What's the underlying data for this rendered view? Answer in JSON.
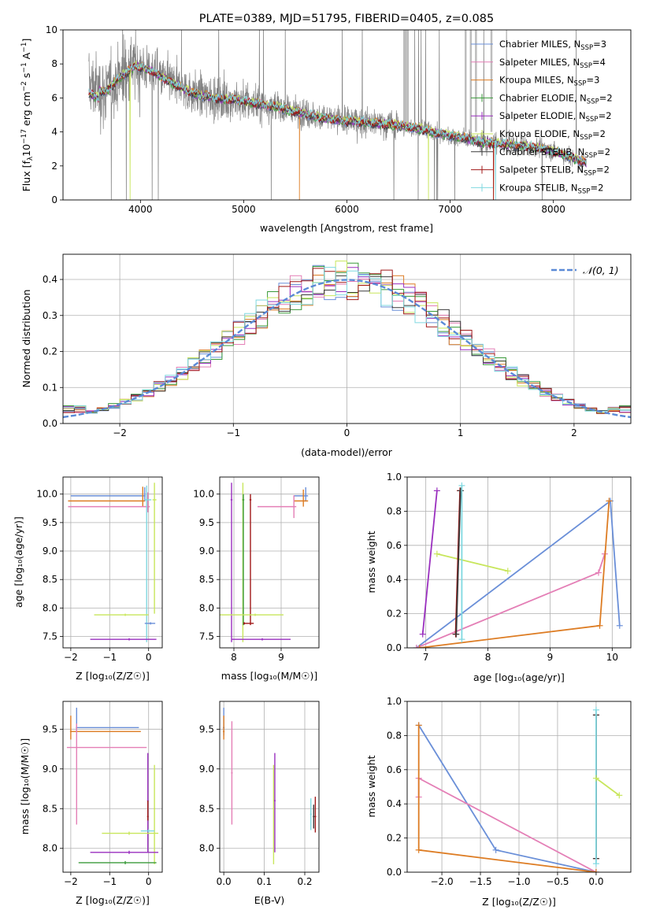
{
  "colors": {
    "Chabrier MILES": "#6a8fd8",
    "Salpeter MILES": "#e47fb6",
    "Kroupa MILES": "#dd7c23",
    "Chabrier ELODIE": "#3a9a3a",
    "Salpeter ELODIE": "#9a2fbf",
    "Kroupa ELODIE": "#c8e65c",
    "Chabrier STELIB": "#3a3a3a",
    "Salpeter STELIB": "#a01818",
    "Kroupa STELIB": "#7fd8e0",
    "data": "#808080",
    "normal": "#5b8ad6"
  },
  "chart_data": [
    {
      "id": "spectrum",
      "type": "line",
      "title": "PLATE=0389, MJD=51795, FIBERID=0405, z=0.085",
      "xlabel": "wavelength [Angstrom, rest frame]",
      "ylabel": "Flux [f$_\\lambda$10$^{-17}$ erg cm$^{-2}$ s$^{-1}$ A$^{-1}$]",
      "ylabel_parts": [
        "Flux [f",
        "λ",
        "10",
        "−17",
        " erg cm",
        "−2",
        " s",
        "−1",
        " A",
        "−1",
        "]"
      ],
      "xlim": [
        3250,
        8750
      ],
      "ylim": [
        0,
        10
      ],
      "xticks": [
        4000,
        5000,
        6000,
        7000,
        8000
      ],
      "yticks": [
        0,
        2,
        4,
        6,
        8,
        10
      ],
      "legend_position": "right",
      "legend": [
        {
          "base": "Chabrier MILES, N",
          "sub": "SSP",
          "tail": "=3"
        },
        {
          "base": "Salpeter MILES, N",
          "sub": "SSP",
          "tail": "=4"
        },
        {
          "base": "Kroupa MILES, N",
          "sub": "SSP",
          "tail": "=3"
        },
        {
          "base": "Chabrier ELODIE, N",
          "sub": "SSP",
          "tail": "=2"
        },
        {
          "base": "Salpeter ELODIE, N",
          "sub": "SSP",
          "tail": "=2"
        },
        {
          "base": "Kroupa ELODIE, N",
          "sub": "SSP",
          "tail": "=2"
        },
        {
          "base": "Chabrier STELIB, N",
          "sub": "SSP",
          "tail": "=2"
        },
        {
          "base": "Salpeter STELIB, N",
          "sub": "SSP",
          "tail": "=2"
        },
        {
          "base": "Kroupa STELIB, N",
          "sub": "SSP",
          "tail": "=2"
        }
      ],
      "continuum": {
        "x": [
          3500,
          3650,
          3800,
          3950,
          4100,
          4300,
          4500,
          4700,
          4900,
          5100,
          5300,
          5500,
          5700,
          5900,
          6100,
          6300,
          6500,
          6700,
          6900,
          7100,
          7300,
          7500,
          7700,
          7900,
          8100,
          8300
        ],
        "y": [
          6.8,
          6.3,
          7.2,
          7.9,
          7.6,
          6.9,
          6.3,
          6.0,
          5.9,
          5.7,
          5.5,
          5.2,
          4.9,
          4.7,
          4.6,
          4.5,
          4.4,
          4.2,
          3.9,
          3.7,
          3.4,
          3.3,
          3.2,
          3.0,
          2.7,
          2.2
        ]
      }
    },
    {
      "id": "residuals",
      "type": "step",
      "xlabel": "(data-model)/error",
      "ylabel": "Normed distribution",
      "xlim": [
        -2.5,
        2.5
      ],
      "ylim": [
        0,
        0.47
      ],
      "xticks": [
        -2,
        -1,
        0,
        1,
        2
      ],
      "yticks": [
        0.0,
        0.1,
        0.2,
        0.3,
        0.4
      ],
      "grid": true,
      "legend_position": "upper right",
      "legend_label": "𝒩(0, 1)",
      "bin_width": 0.1
    },
    {
      "id": "age-vs-Z",
      "type": "errorbar",
      "xlabel": "Z [log₁₀(Z/Z☉)]",
      "ylabel": "age  [log₁₀(age/yr)]",
      "xlim": [
        -2.2,
        0.35
      ],
      "ylim": [
        7.3,
        10.3
      ],
      "xticks": [
        -2,
        -1,
        0
      ],
      "yticks": [
        7.5,
        8.0,
        8.5,
        9.0,
        9.5,
        10.0
      ],
      "grid": true,
      "points": [
        {
          "series": "Chabrier MILES",
          "x": -0.1,
          "xerr": [
            1.9,
            0.02
          ],
          "y": 9.97,
          "yerr": [
            0.1,
            0.15
          ]
        },
        {
          "series": "Kroupa MILES",
          "x": -0.15,
          "xerr": [
            1.92,
            0.05
          ],
          "y": 9.88,
          "yerr": [
            0.1,
            0.25
          ]
        },
        {
          "series": "Salpeter MILES",
          "x": -0.02,
          "xerr": [
            2.05,
            0.05
          ],
          "y": 9.78,
          "yerr": [
            0.1,
            0.25
          ]
        },
        {
          "series": "Kroupa STELIB",
          "x": -0.05,
          "xerr": [
            0.05,
            0.12
          ],
          "y": 9.9,
          "yerr": [
            2.5,
            0.25
          ]
        },
        {
          "series": "Kroupa ELODIE",
          "x": 0.15,
          "xerr": [
            0.05,
            0.05
          ],
          "y": 9.9,
          "yerr": [
            2.0,
            0.3
          ]
        },
        {
          "series": "Kroupa ELODIE",
          "x": -0.6,
          "xerr": [
            0.8,
            0.6
          ],
          "y": 7.88,
          "yerr": [
            0.02,
            0.02
          ]
        },
        {
          "series": "Chabrier MILES",
          "x": 0.05,
          "xerr": [
            0.15,
            0.12
          ],
          "y": 7.73,
          "yerr": [
            0.02,
            0.02
          ]
        },
        {
          "series": "Salpeter ELODIE",
          "x": -0.5,
          "xerr": [
            1.0,
            0.7
          ],
          "y": 7.45,
          "yerr": [
            0.02,
            0.02
          ]
        }
      ]
    },
    {
      "id": "age-vs-mass",
      "type": "errorbar",
      "xlabel": "mass [log₁₀(M/M☉)]",
      "xlim": [
        7.7,
        9.8
      ],
      "ylim": [
        7.3,
        10.3
      ],
      "xticks": [
        8,
        9
      ],
      "yticks": [
        7.5,
        8.0,
        8.5,
        9.0,
        9.5,
        10.0
      ],
      "grid": true,
      "points": [
        {
          "series": "Chabrier MILES",
          "x": 9.52,
          "xerr": [
            0.25,
            0.05
          ],
          "y": 9.97,
          "yerr": [
            0.1,
            0.15
          ]
        },
        {
          "series": "Kroupa MILES",
          "x": 9.47,
          "xerr": [
            0.2,
            0.1
          ],
          "y": 9.88,
          "yerr": [
            0.1,
            0.2
          ]
        },
        {
          "series": "Salpeter MILES",
          "x": 9.27,
          "xerr": [
            0.77,
            0.05
          ],
          "y": 9.78,
          "yerr": [
            0.2,
            0.2
          ]
        },
        {
          "series": "Kroupa ELODIE",
          "x": 8.19,
          "xerr": [
            0.02,
            0.02
          ],
          "y": 9.9,
          "yerr": [
            2.5,
            0.3
          ]
        },
        {
          "series": "Salpeter ELODIE",
          "x": 7.95,
          "xerr": [
            0.02,
            0.02
          ],
          "y": 9.9,
          "yerr": [
            2.5,
            0.3
          ]
        },
        {
          "series": "Salpeter STELIB",
          "x": 8.35,
          "xerr": [
            0.02,
            0.02
          ],
          "y": 9.9,
          "yerr": [
            2.2,
            0.1
          ]
        },
        {
          "series": "Chabrier ELODIE",
          "x": 8.2,
          "xerr": [
            0.02,
            0.02
          ],
          "y": 9.9,
          "yerr": [
            2.2,
            0.1
          ]
        },
        {
          "series": "Kroupa ELODIE",
          "x": 8.45,
          "xerr": [
            0.8,
            0.6
          ],
          "y": 7.88,
          "yerr": [
            0.02,
            0.02
          ]
        },
        {
          "series": "Salpeter ELODIE",
          "x": 8.6,
          "xerr": [
            0.65,
            0.6
          ],
          "y": 7.45,
          "yerr": [
            0.02,
            0.02
          ]
        },
        {
          "series": "Salpeter STELIB",
          "x": 8.22,
          "xerr": [
            0.02,
            0.2
          ],
          "y": 7.73,
          "yerr": [
            0.02,
            0.02
          ]
        }
      ]
    },
    {
      "id": "mass-weight-vs-age",
      "type": "line",
      "xlabel": "age  [log₁₀(age/yr)]",
      "ylabel": "mass weight",
      "xlim": [
        6.7,
        10.3
      ],
      "ylim": [
        0,
        1.0
      ],
      "xticks": [
        7,
        8,
        9,
        10
      ],
      "yticks": [
        0.0,
        0.2,
        0.4,
        0.6,
        0.8,
        1.0
      ],
      "grid": true,
      "series": [
        {
          "name": "Chabrier MILES",
          "x": [
            6.85,
            9.97,
            10.12
          ],
          "y": [
            0.0,
            0.86,
            0.13
          ]
        },
        {
          "name": "Salpeter MILES",
          "x": [
            6.85,
            9.78,
            9.88
          ],
          "y": [
            0.0,
            0.44,
            0.55
          ]
        },
        {
          "name": "Kroupa MILES",
          "x": [
            6.9,
            9.8,
            9.95
          ],
          "y": [
            0.0,
            0.13,
            0.86
          ]
        },
        {
          "name": "Salpeter ELODIE",
          "x": [
            6.95,
            7.18
          ],
          "y": [
            0.08,
            0.92
          ]
        },
        {
          "name": "Kroupa ELODIE",
          "x": [
            7.18,
            8.32
          ],
          "y": [
            0.55,
            0.45
          ]
        },
        {
          "name": "Salpeter STELIB",
          "x": [
            7.48,
            7.55
          ],
          "y": [
            0.08,
            0.92
          ]
        },
        {
          "name": "Chabrier STELIB",
          "x": [
            7.49,
            7.56
          ],
          "y": [
            0.08,
            0.92
          ]
        },
        {
          "name": "Kroupa STELIB",
          "x": [
            7.58,
            7.58
          ],
          "y": [
            0.05,
            0.95
          ]
        }
      ]
    },
    {
      "id": "mass-vs-Z",
      "type": "errorbar",
      "xlabel": "Z [log₁₀(Z/Z☉)]",
      "ylabel": "mass [log₁₀(M/M☉)]",
      "xlim": [
        -2.2,
        0.35
      ],
      "ylim": [
        7.7,
        9.85
      ],
      "xticks": [
        -2,
        -1,
        0
      ],
      "yticks": [
        8.0,
        8.5,
        9.0,
        9.5
      ],
      "grid": true,
      "points": [
        {
          "series": "Chabrier MILES",
          "x": -1.85,
          "xerr": [
            0.02,
            1.6
          ],
          "y": 9.52,
          "yerr": [
            0.05,
            0.25
          ]
        },
        {
          "series": "Kroupa MILES",
          "x": -2.0,
          "xerr": [
            0.02,
            1.8
          ],
          "y": 9.47,
          "yerr": [
            0.1,
            0.2
          ]
        },
        {
          "series": "Salpeter MILES",
          "x": -1.85,
          "xerr": [
            0.25,
            1.8
          ],
          "y": 9.27,
          "yerr": [
            0.97,
            0.3
          ]
        },
        {
          "series": "Salpeter ELODIE",
          "x": -0.02,
          "xerr": [
            0.02,
            0.02
          ],
          "y": 8.6,
          "yerr": [
            0.65,
            0.6
          ]
        },
        {
          "series": "Salpeter STELIB",
          "x": -0.02,
          "xerr": [
            0.02,
            0.02
          ],
          "y": 8.4,
          "yerr": [
            0.05,
            0.2
          ]
        },
        {
          "series": "Kroupa ELODIE",
          "x": 0.15,
          "xerr": [
            0.02,
            0.02
          ],
          "y": 8.5,
          "yerr": [
            0.7,
            0.55
          ]
        },
        {
          "series": "Kroupa STELIB",
          "x": 0.0,
          "xerr": [
            0.2,
            0.15
          ],
          "y": 8.22,
          "yerr": [
            0.02,
            0.02
          ]
        },
        {
          "series": "Kroupa ELODIE",
          "x": -0.5,
          "xerr": [
            0.7,
            0.75
          ],
          "y": 8.19,
          "yerr": [
            0.02,
            0.02
          ]
        },
        {
          "series": "Salpeter ELODIE",
          "x": -0.5,
          "xerr": [
            1.0,
            0.75
          ],
          "y": 7.95,
          "yerr": [
            0.02,
            0.02
          ]
        },
        {
          "series": "Chabrier ELODIE",
          "x": -0.6,
          "xerr": [
            1.2,
            0.8
          ],
          "y": 7.82,
          "yerr": [
            0.02,
            0.02
          ]
        }
      ]
    },
    {
      "id": "mass-vs-EBV",
      "type": "errorbar",
      "xlabel": "E(B-V)",
      "xlim": [
        -0.01,
        0.235
      ],
      "ylim": [
        7.7,
        9.85
      ],
      "xticks": [
        0.0,
        0.1,
        0.2
      ],
      "yticks": [
        8.0,
        8.5,
        9.0,
        9.5
      ],
      "grid": true,
      "points": [
        {
          "series": "Chabrier MILES",
          "x": 0.0,
          "xerr": [
            0.002,
            0.002
          ],
          "y": 9.52,
          "yerr": [
            0.1,
            0.25
          ]
        },
        {
          "series": "Kroupa MILES",
          "x": 0.0,
          "xerr": [
            0.002,
            0.002
          ],
          "y": 9.47,
          "yerr": [
            0.1,
            0.2
          ]
        },
        {
          "series": "Salpeter MILES",
          "x": 0.02,
          "xerr": [
            0.002,
            0.002
          ],
          "y": 8.95,
          "yerr": [
            0.65,
            0.65
          ]
        },
        {
          "series": "Kroupa ELODIE",
          "x": 0.123,
          "xerr": [
            0.002,
            0.002
          ],
          "y": 8.5,
          "yerr": [
            0.7,
            0.55
          ]
        },
        {
          "series": "Salpeter ELODIE",
          "x": 0.126,
          "xerr": [
            0.002,
            0.002
          ],
          "y": 8.6,
          "yerr": [
            0.65,
            0.6
          ]
        },
        {
          "series": "Kroupa STELIB",
          "x": 0.215,
          "xerr": [
            0.002,
            0.002
          ],
          "y": 8.43,
          "yerr": [
            0.2,
            0.2
          ]
        },
        {
          "series": "Chabrier STELIB",
          "x": 0.222,
          "xerr": [
            0.002,
            0.002
          ],
          "y": 8.4,
          "yerr": [
            0.15,
            0.15
          ]
        },
        {
          "series": "Salpeter STELIB",
          "x": 0.226,
          "xerr": [
            0.002,
            0.002
          ],
          "y": 8.4,
          "yerr": [
            0.2,
            0.25
          ]
        }
      ]
    },
    {
      "id": "mass-weight-vs-Z",
      "type": "line",
      "xlabel": "Z [log₁₀(Z/Z☉)]",
      "ylabel": "mass weight",
      "xlim": [
        -2.45,
        0.45
      ],
      "ylim": [
        0,
        1.0
      ],
      "xticks": [
        -2.0,
        -1.5,
        -1.0,
        -0.5,
        0.0
      ],
      "yticks": [
        0.0,
        0.2,
        0.4,
        0.6,
        0.8,
        1.0
      ],
      "grid": true,
      "series": [
        {
          "name": "Chabrier MILES",
          "x": [
            -2.3,
            -1.3,
            0.0
          ],
          "y": [
            0.86,
            0.13,
            0.0
          ]
        },
        {
          "name": "Salpeter MILES",
          "x": [
            -2.3,
            -2.3,
            0.0
          ],
          "y": [
            0.44,
            0.55,
            0.0
          ]
        },
        {
          "name": "Kroupa MILES",
          "x": [
            -2.3,
            -2.3,
            0.0
          ],
          "y": [
            0.86,
            0.13,
            0.0
          ]
        },
        {
          "name": "Salpeter STELIB",
          "x": [
            0.0,
            0.0
          ],
          "y": [
            0.08,
            0.92
          ]
        },
        {
          "name": "Chabrier STELIB",
          "x": [
            0.0,
            0.0
          ],
          "y": [
            0.08,
            0.92
          ]
        },
        {
          "name": "Kroupa STELIB",
          "x": [
            0.0,
            0.0
          ],
          "y": [
            0.05,
            0.95
          ]
        },
        {
          "name": "Kroupa ELODIE",
          "x": [
            0.0,
            0.3
          ],
          "y": [
            0.55,
            0.45
          ]
        }
      ]
    }
  ]
}
